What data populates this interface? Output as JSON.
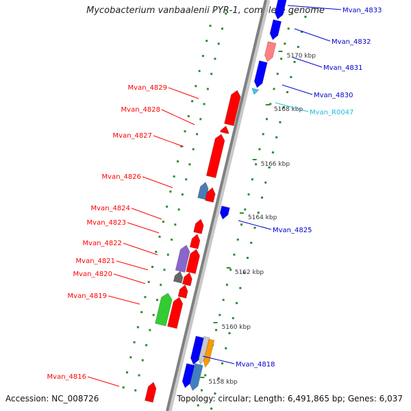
{
  "title": "Mycobacterium vanbaalenii PYR-1, complete genome",
  "accession_text": "Accession: NC_008726",
  "stats_text": "Topology: circular; Length: 6,491,865 bp; Genes: 6,037",
  "colors": {
    "backbone": "#808080",
    "tick_green": "#2e8b2e",
    "ruler_tick": "#2e8b2e",
    "label_minus": "#ff0000",
    "label_plus": "#0000cc",
    "label_rna": "#22bbdd"
  },
  "ruler_labels": [
    "5170 kbp",
    "5168 kbp",
    "5166 kbp",
    "5164 kbp",
    "5162 kbp",
    "5160 kbp",
    "5158 kbp"
  ],
  "genes_plus": [
    {
      "label": "Mvan_4833",
      "color": "#0000ff"
    },
    {
      "label": "Mvan_4832",
      "color": "#0000ff"
    },
    {
      "label": "Mvan_4831",
      "color": "#ff8080"
    },
    {
      "label": "Mvan_4830",
      "color": "#0000ff"
    },
    {
      "label": "Mvan_R0047",
      "color": "#33ccee"
    },
    {
      "label": "Mvan_4825",
      "color": "#0000ff"
    },
    {
      "label": "Mvan_4818",
      "color": "#0000ff"
    }
  ],
  "genes_minus": [
    {
      "label": "Mvan_4829",
      "color": "#ff0000"
    },
    {
      "label": "Mvan_4828",
      "color": "#ff0000"
    },
    {
      "label": "Mvan_4827",
      "color": "#ff0000"
    },
    {
      "label": "Mvan_4826",
      "color": "#ff0000"
    },
    {
      "label": "Mvan_4824",
      "color": "#ff0000"
    },
    {
      "label": "Mvan_4823",
      "color": "#ff0000"
    },
    {
      "label": "Mvan_4822",
      "color": "#ff0000"
    },
    {
      "label": "Mvan_4821",
      "color": "#ff0000"
    },
    {
      "label": "Mvan_4820",
      "color": "#ff0000"
    },
    {
      "label": "Mvan_4819",
      "color": "#ff0000"
    },
    {
      "label": "Mvan_4816",
      "color": "#ff0000"
    }
  ]
}
